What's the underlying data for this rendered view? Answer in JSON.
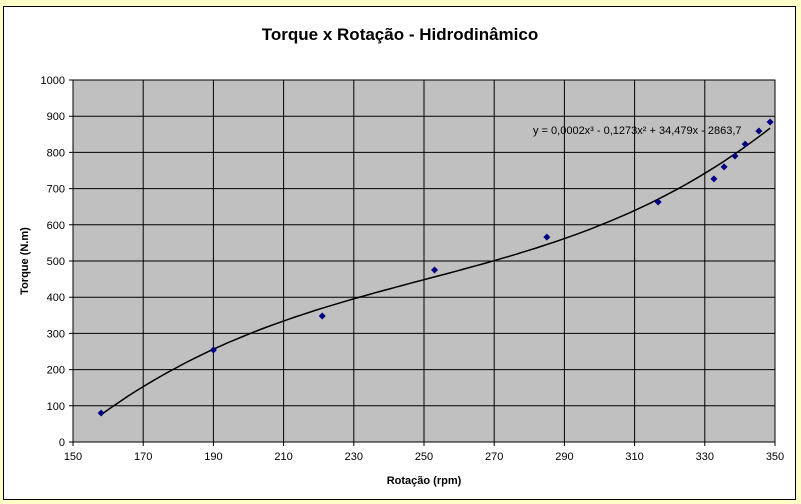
{
  "chart_data": {
    "type": "scatter",
    "title": "Torque x Rotação - Hidrodinâmico",
    "xlabel": "Rotação (rpm)",
    "ylabel": "Torque (N.m)",
    "xlim": [
      150,
      350
    ],
    "ylim": [
      0,
      1000
    ],
    "xticks": [
      150,
      170,
      190,
      210,
      230,
      250,
      270,
      290,
      310,
      330,
      350
    ],
    "yticks": [
      0,
      100,
      200,
      300,
      400,
      500,
      600,
      700,
      800,
      900,
      1000
    ],
    "grid": true,
    "points": [
      [
        158,
        80
      ],
      [
        190,
        254
      ],
      [
        221,
        348
      ],
      [
        253,
        475
      ],
      [
        285,
        566
      ],
      [
        316.7,
        663
      ],
      [
        332.6,
        727
      ],
      [
        335.5,
        760
      ],
      [
        338.6,
        790
      ],
      [
        341.5,
        823
      ],
      [
        345.4,
        859
      ],
      [
        348.6,
        884
      ]
    ],
    "trendline": {
      "type": "polynomial",
      "order": 3,
      "equation": "y = 0,0002x³ - 0,1273x² + 34,479x - 2863,7"
    },
    "colors": {
      "plot_bg": "#C0C0C0",
      "points": "#000080",
      "trendline": "#000000",
      "page_bg": "#FFFFC8"
    }
  }
}
